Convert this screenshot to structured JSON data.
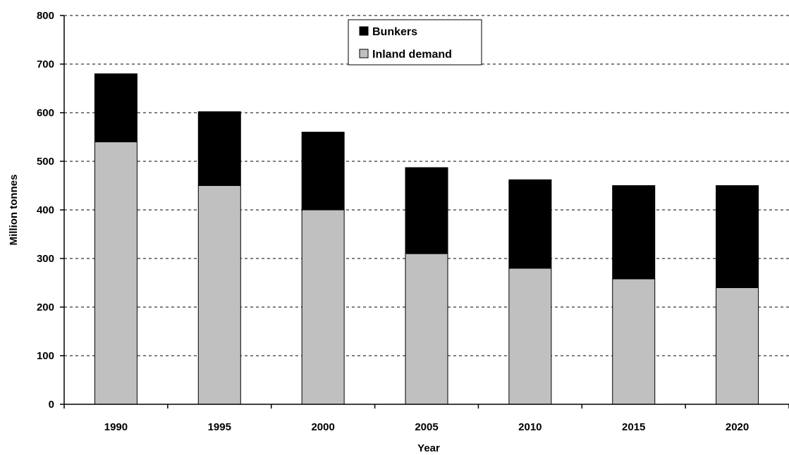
{
  "chart_data": {
    "type": "bar",
    "stacked": true,
    "title": "",
    "xlabel": "Year",
    "ylabel": "Million tonnes",
    "ylim": [
      0,
      800
    ],
    "yticks": [
      0,
      100,
      200,
      300,
      400,
      500,
      600,
      700,
      800
    ],
    "grid": "horizontal dashed",
    "legend_position": "top-center",
    "categories": [
      "1990",
      "1995",
      "2000",
      "2005",
      "2010",
      "2015",
      "2020"
    ],
    "series": [
      {
        "name": "Inland demand",
        "color": "#c0c0c0",
        "values": [
          540,
          450,
          400,
          310,
          280,
          258,
          240
        ]
      },
      {
        "name": "Bunkers",
        "color": "#000000",
        "values": [
          140,
          152,
          160,
          177,
          182,
          192,
          210
        ]
      }
    ]
  }
}
